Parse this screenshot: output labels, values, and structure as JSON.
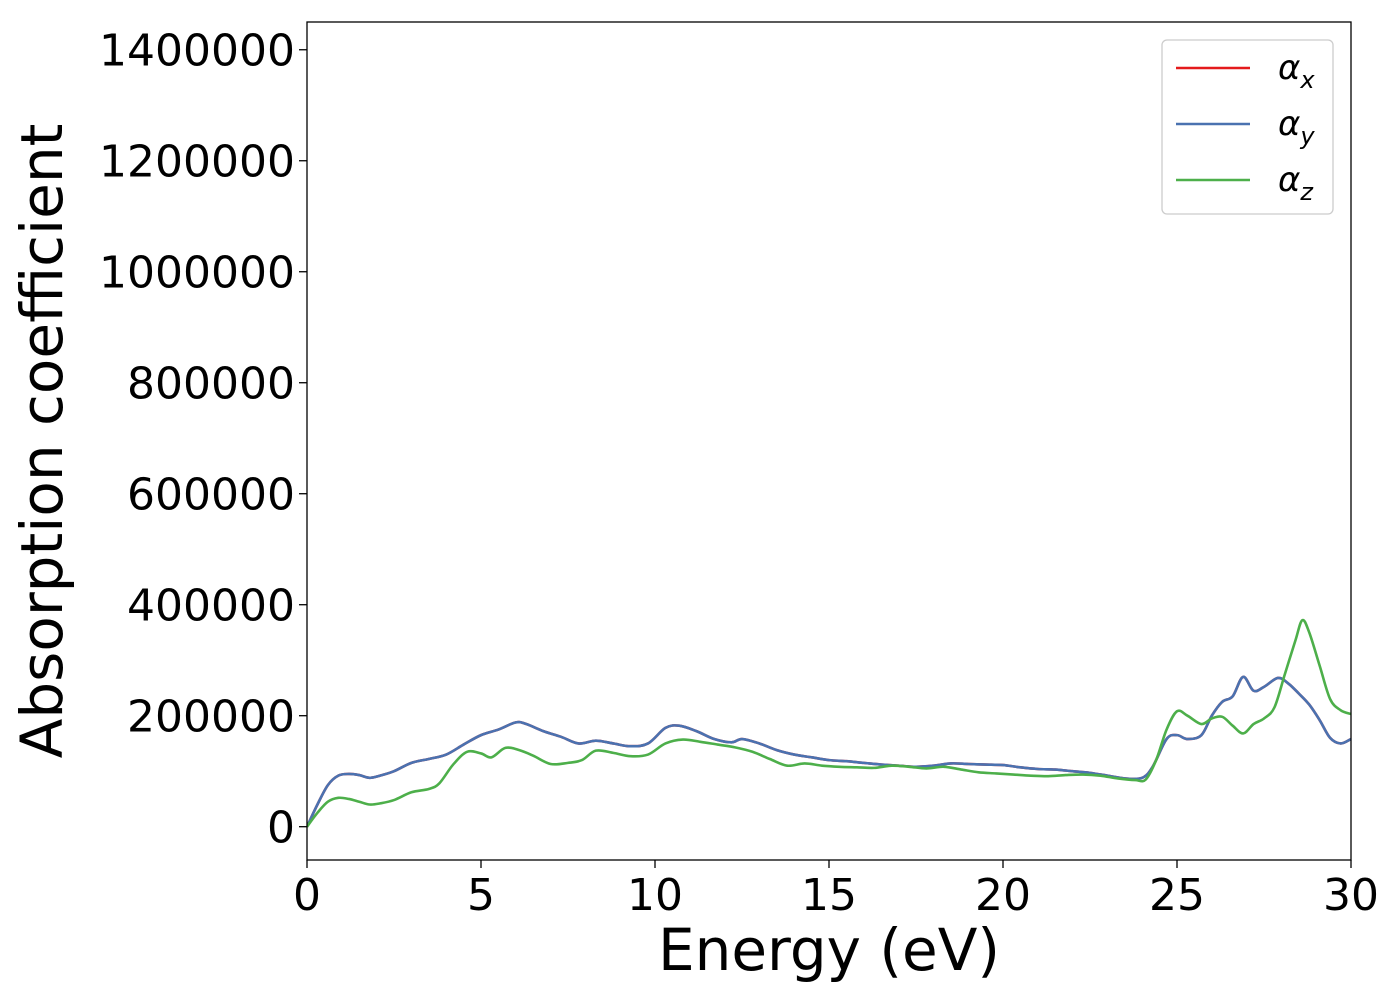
{
  "chart_data": {
    "type": "line",
    "title": "",
    "xlabel": "Energy (eV)",
    "ylabel": "Absorption coefficient",
    "xlim": [
      0,
      30
    ],
    "ylim": [
      -60000,
      1450000
    ],
    "xticks": [
      0,
      5,
      10,
      15,
      20,
      25,
      30
    ],
    "xtick_labels": [
      "0",
      "5",
      "10",
      "15",
      "20",
      "25",
      "30"
    ],
    "yticks": [
      0,
      200000,
      400000,
      600000,
      800000,
      1000000,
      1200000,
      1400000
    ],
    "ytick_labels": [
      "0",
      "200000",
      "400000",
      "600000",
      "800000",
      "1000000",
      "1200000",
      "1400000"
    ],
    "grid": false,
    "legend_position": "top-right",
    "series": [
      {
        "name": "αx",
        "symbol": "α",
        "subscript": "x",
        "color": "#e41a1c",
        "x": [
          0,
          0.3,
          0.6,
          0.9,
          1.2,
          1.5,
          1.8,
          2.1,
          2.5,
          3.0,
          3.5,
          4.0,
          4.5,
          5.0,
          5.5,
          6.0,
          6.3,
          6.8,
          7.3,
          7.8,
          8.3,
          8.8,
          9.3,
          9.8,
          10.3,
          10.7,
          11.2,
          11.7,
          12.2,
          12.5,
          13.0,
          13.5,
          14.0,
          14.5,
          15.0,
          15.5,
          16.0,
          16.5,
          17.0,
          17.5,
          18.0,
          18.5,
          19.0,
          19.5,
          20.0,
          20.5,
          21.0,
          21.5,
          22.0,
          22.5,
          23.0,
          23.5,
          24.0,
          24.3,
          24.7,
          25.0,
          25.3,
          25.7,
          26.0,
          26.3,
          26.6,
          26.9,
          27.2,
          27.5,
          27.9,
          28.2,
          28.5,
          28.8,
          29.1,
          29.4,
          29.7,
          30.0
        ],
        "y": [
          0,
          40000,
          75000,
          92000,
          95000,
          93000,
          88000,
          92000,
          100000,
          115000,
          122000,
          130000,
          148000,
          165000,
          175000,
          188000,
          185000,
          172000,
          162000,
          150000,
          155000,
          150000,
          145000,
          150000,
          178000,
          182000,
          172000,
          158000,
          152000,
          158000,
          150000,
          138000,
          130000,
          125000,
          120000,
          118000,
          115000,
          112000,
          110000,
          108000,
          110000,
          114000,
          113000,
          112000,
          111000,
          107000,
          104000,
          103000,
          100000,
          97000,
          92000,
          87000,
          88000,
          108000,
          158000,
          165000,
          158000,
          165000,
          200000,
          225000,
          235000,
          270000,
          245000,
          252000,
          268000,
          258000,
          240000,
          220000,
          192000,
          160000,
          150000,
          158000
        ]
      },
      {
        "name": "αy",
        "symbol": "α",
        "subscript": "y",
        "color": "#4a72b0",
        "x": [
          0,
          0.3,
          0.6,
          0.9,
          1.2,
          1.5,
          1.8,
          2.1,
          2.5,
          3.0,
          3.5,
          4.0,
          4.5,
          5.0,
          5.5,
          6.0,
          6.3,
          6.8,
          7.3,
          7.8,
          8.3,
          8.8,
          9.3,
          9.8,
          10.3,
          10.7,
          11.2,
          11.7,
          12.2,
          12.5,
          13.0,
          13.5,
          14.0,
          14.5,
          15.0,
          15.5,
          16.0,
          16.5,
          17.0,
          17.5,
          18.0,
          18.5,
          19.0,
          19.5,
          20.0,
          20.5,
          21.0,
          21.5,
          22.0,
          22.5,
          23.0,
          23.5,
          24.0,
          24.3,
          24.7,
          25.0,
          25.3,
          25.7,
          26.0,
          26.3,
          26.6,
          26.9,
          27.2,
          27.5,
          27.9,
          28.2,
          28.5,
          28.8,
          29.1,
          29.4,
          29.7,
          30.0
        ],
        "y": [
          0,
          40000,
          75000,
          92000,
          95000,
          93000,
          88000,
          92000,
          100000,
          115000,
          122000,
          130000,
          148000,
          165000,
          175000,
          188000,
          185000,
          172000,
          162000,
          150000,
          155000,
          150000,
          145000,
          150000,
          178000,
          182000,
          172000,
          158000,
          152000,
          158000,
          150000,
          138000,
          130000,
          125000,
          120000,
          118000,
          115000,
          112000,
          110000,
          108000,
          110000,
          114000,
          113000,
          112000,
          111000,
          107000,
          104000,
          103000,
          100000,
          97000,
          92000,
          87000,
          88000,
          108000,
          158000,
          165000,
          158000,
          165000,
          200000,
          225000,
          235000,
          270000,
          245000,
          252000,
          268000,
          258000,
          240000,
          220000,
          192000,
          160000,
          150000,
          158000
        ]
      },
      {
        "name": "αz",
        "symbol": "α",
        "subscript": "z",
        "color": "#4daf4a",
        "x": [
          0,
          0.3,
          0.6,
          0.9,
          1.2,
          1.5,
          1.8,
          2.1,
          2.5,
          3.0,
          3.5,
          3.8,
          4.2,
          4.6,
          5.0,
          5.3,
          5.7,
          6.1,
          6.5,
          7.0,
          7.5,
          7.9,
          8.3,
          8.8,
          9.3,
          9.8,
          10.3,
          10.8,
          11.3,
          11.8,
          12.3,
          12.8,
          13.3,
          13.8,
          14.3,
          14.8,
          15.3,
          15.8,
          16.3,
          16.8,
          17.3,
          17.8,
          18.3,
          18.8,
          19.3,
          19.8,
          20.3,
          20.8,
          21.3,
          21.8,
          22.3,
          22.8,
          23.3,
          23.8,
          24.1,
          24.4,
          24.7,
          25.0,
          25.3,
          25.7,
          26.0,
          26.3,
          26.6,
          26.9,
          27.2,
          27.5,
          27.8,
          28.1,
          28.4,
          28.6,
          28.8,
          29.1,
          29.4,
          29.7,
          30.0
        ],
        "y": [
          0,
          25000,
          45000,
          52000,
          50000,
          45000,
          40000,
          42000,
          48000,
          62000,
          68000,
          78000,
          112000,
          135000,
          132000,
          125000,
          142000,
          138000,
          128000,
          113000,
          115000,
          120000,
          137000,
          133000,
          127000,
          130000,
          150000,
          157000,
          153000,
          148000,
          143000,
          135000,
          122000,
          110000,
          114000,
          110000,
          108000,
          107000,
          106000,
          110000,
          108000,
          105000,
          108000,
          103000,
          98000,
          96000,
          94000,
          92000,
          91000,
          93000,
          94000,
          92000,
          87000,
          84000,
          85000,
          120000,
          175000,
          208000,
          200000,
          185000,
          195000,
          198000,
          182000,
          168000,
          185000,
          195000,
          215000,
          275000,
          335000,
          372000,
          350000,
          290000,
          230000,
          210000,
          203000
        ]
      }
    ]
  }
}
